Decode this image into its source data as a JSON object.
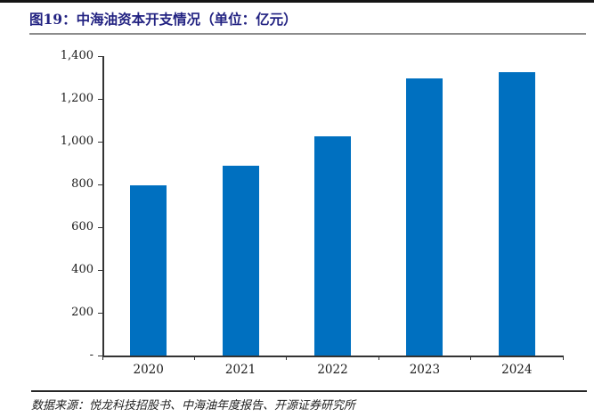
{
  "header": {
    "title": "图19：中海油资本开支情况（单位：亿元）"
  },
  "chart_data": {
    "type": "bar",
    "title": "图19：中海油资本开支情况（单位：亿元）",
    "categories": [
      "2020",
      "2021",
      "2022",
      "2023",
      "2024"
    ],
    "values": [
      795,
      887,
      1025,
      1296,
      1327
    ],
    "xlabel": "",
    "ylabel": "",
    "unit": "亿元",
    "ylim": [
      0,
      1400
    ],
    "ytick_step": 200,
    "ytick_labels": [
      "-",
      "200",
      "400",
      "600",
      "800",
      "1,000",
      "1,200",
      "1,400"
    ],
    "grid": false,
    "legend": "none"
  },
  "footer": {
    "source": "数据来源：悦龙科技招股书、中海油年度报告、开源证券研究所"
  },
  "colors": {
    "bar": "#0070C0",
    "title": "#232382",
    "title_underline": "#8C8C8C",
    "axis": "#333333",
    "top_rule": "#141414",
    "source_rule": "#262626"
  }
}
